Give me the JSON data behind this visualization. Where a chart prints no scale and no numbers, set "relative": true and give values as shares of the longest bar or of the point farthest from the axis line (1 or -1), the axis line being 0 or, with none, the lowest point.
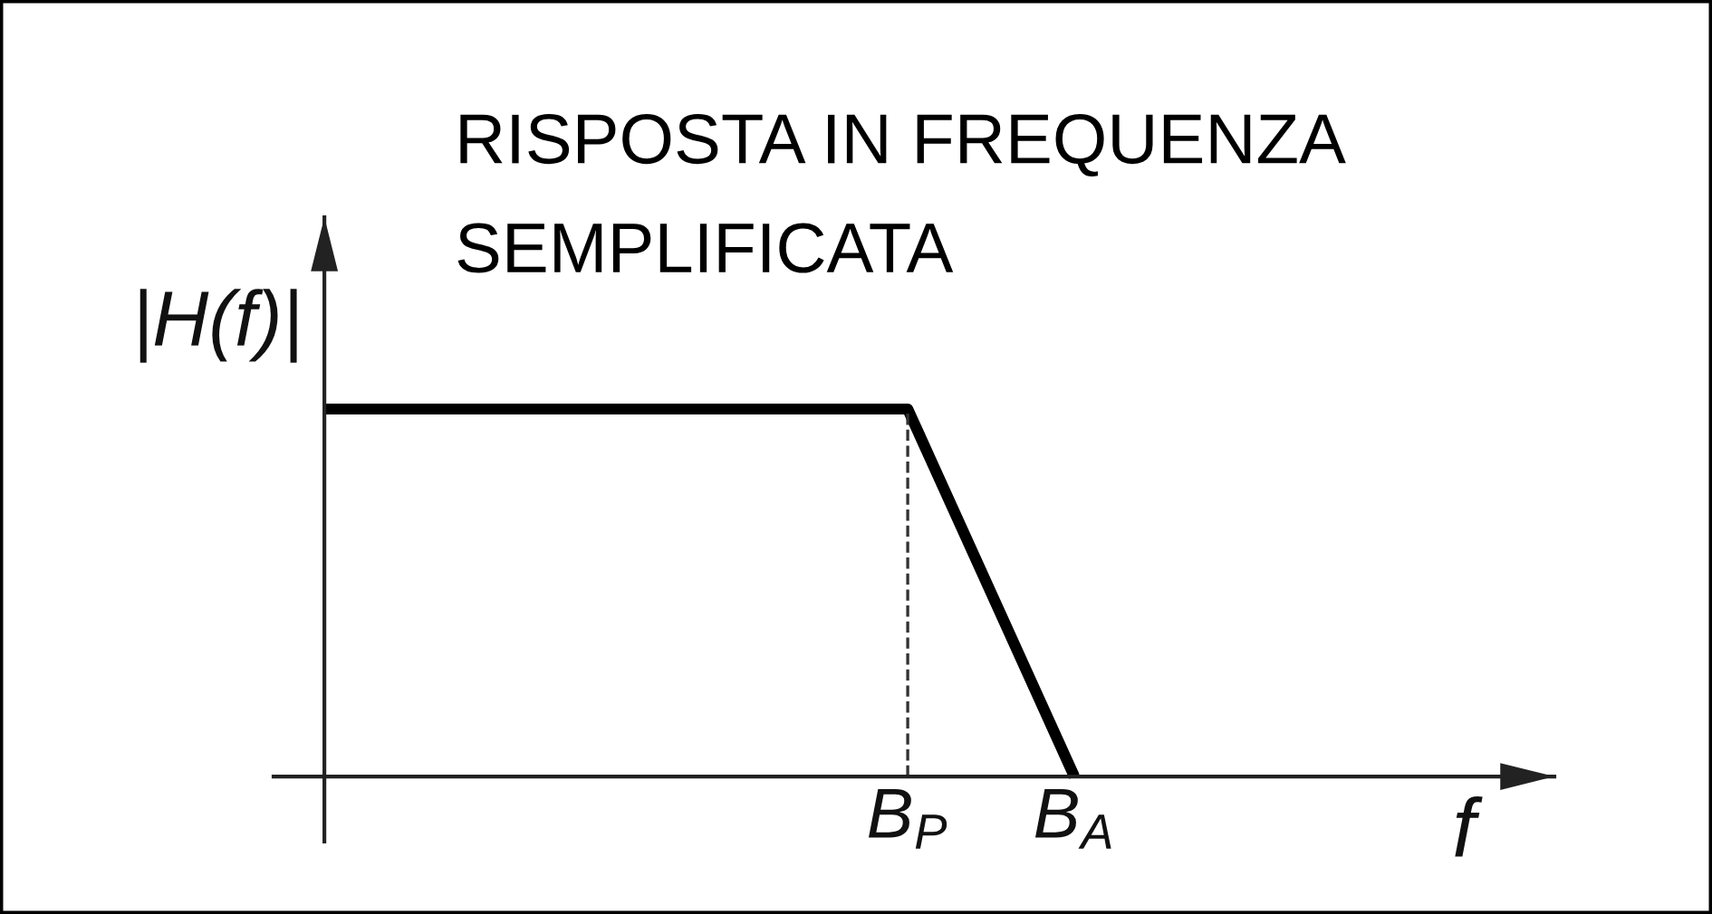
{
  "chart_data": {
    "type": "line",
    "title": "RISPOSTA IN FREQUENZA\nSEMPLIFICATA",
    "xlabel": "f",
    "ylabel": "|H(f)|",
    "relative": true,
    "categories": [
      null,
      null,
      null,
      null,
      null,
      null,
      null,
      "B$_{P}$",
      null,
      "B$_{A}$"
    ],
    "values": [
      1,
      1,
      1,
      1,
      1,
      1,
      1,
      1,
      0.5,
      0
    ],
    "color": "#000000",
    "line_style": "solid",
    "ref_lines": [
      {
        "axis": "x",
        "value": "B$_{P}$",
        "line_style": "dashed",
        "color": "#333333"
      }
    ]
  }
}
